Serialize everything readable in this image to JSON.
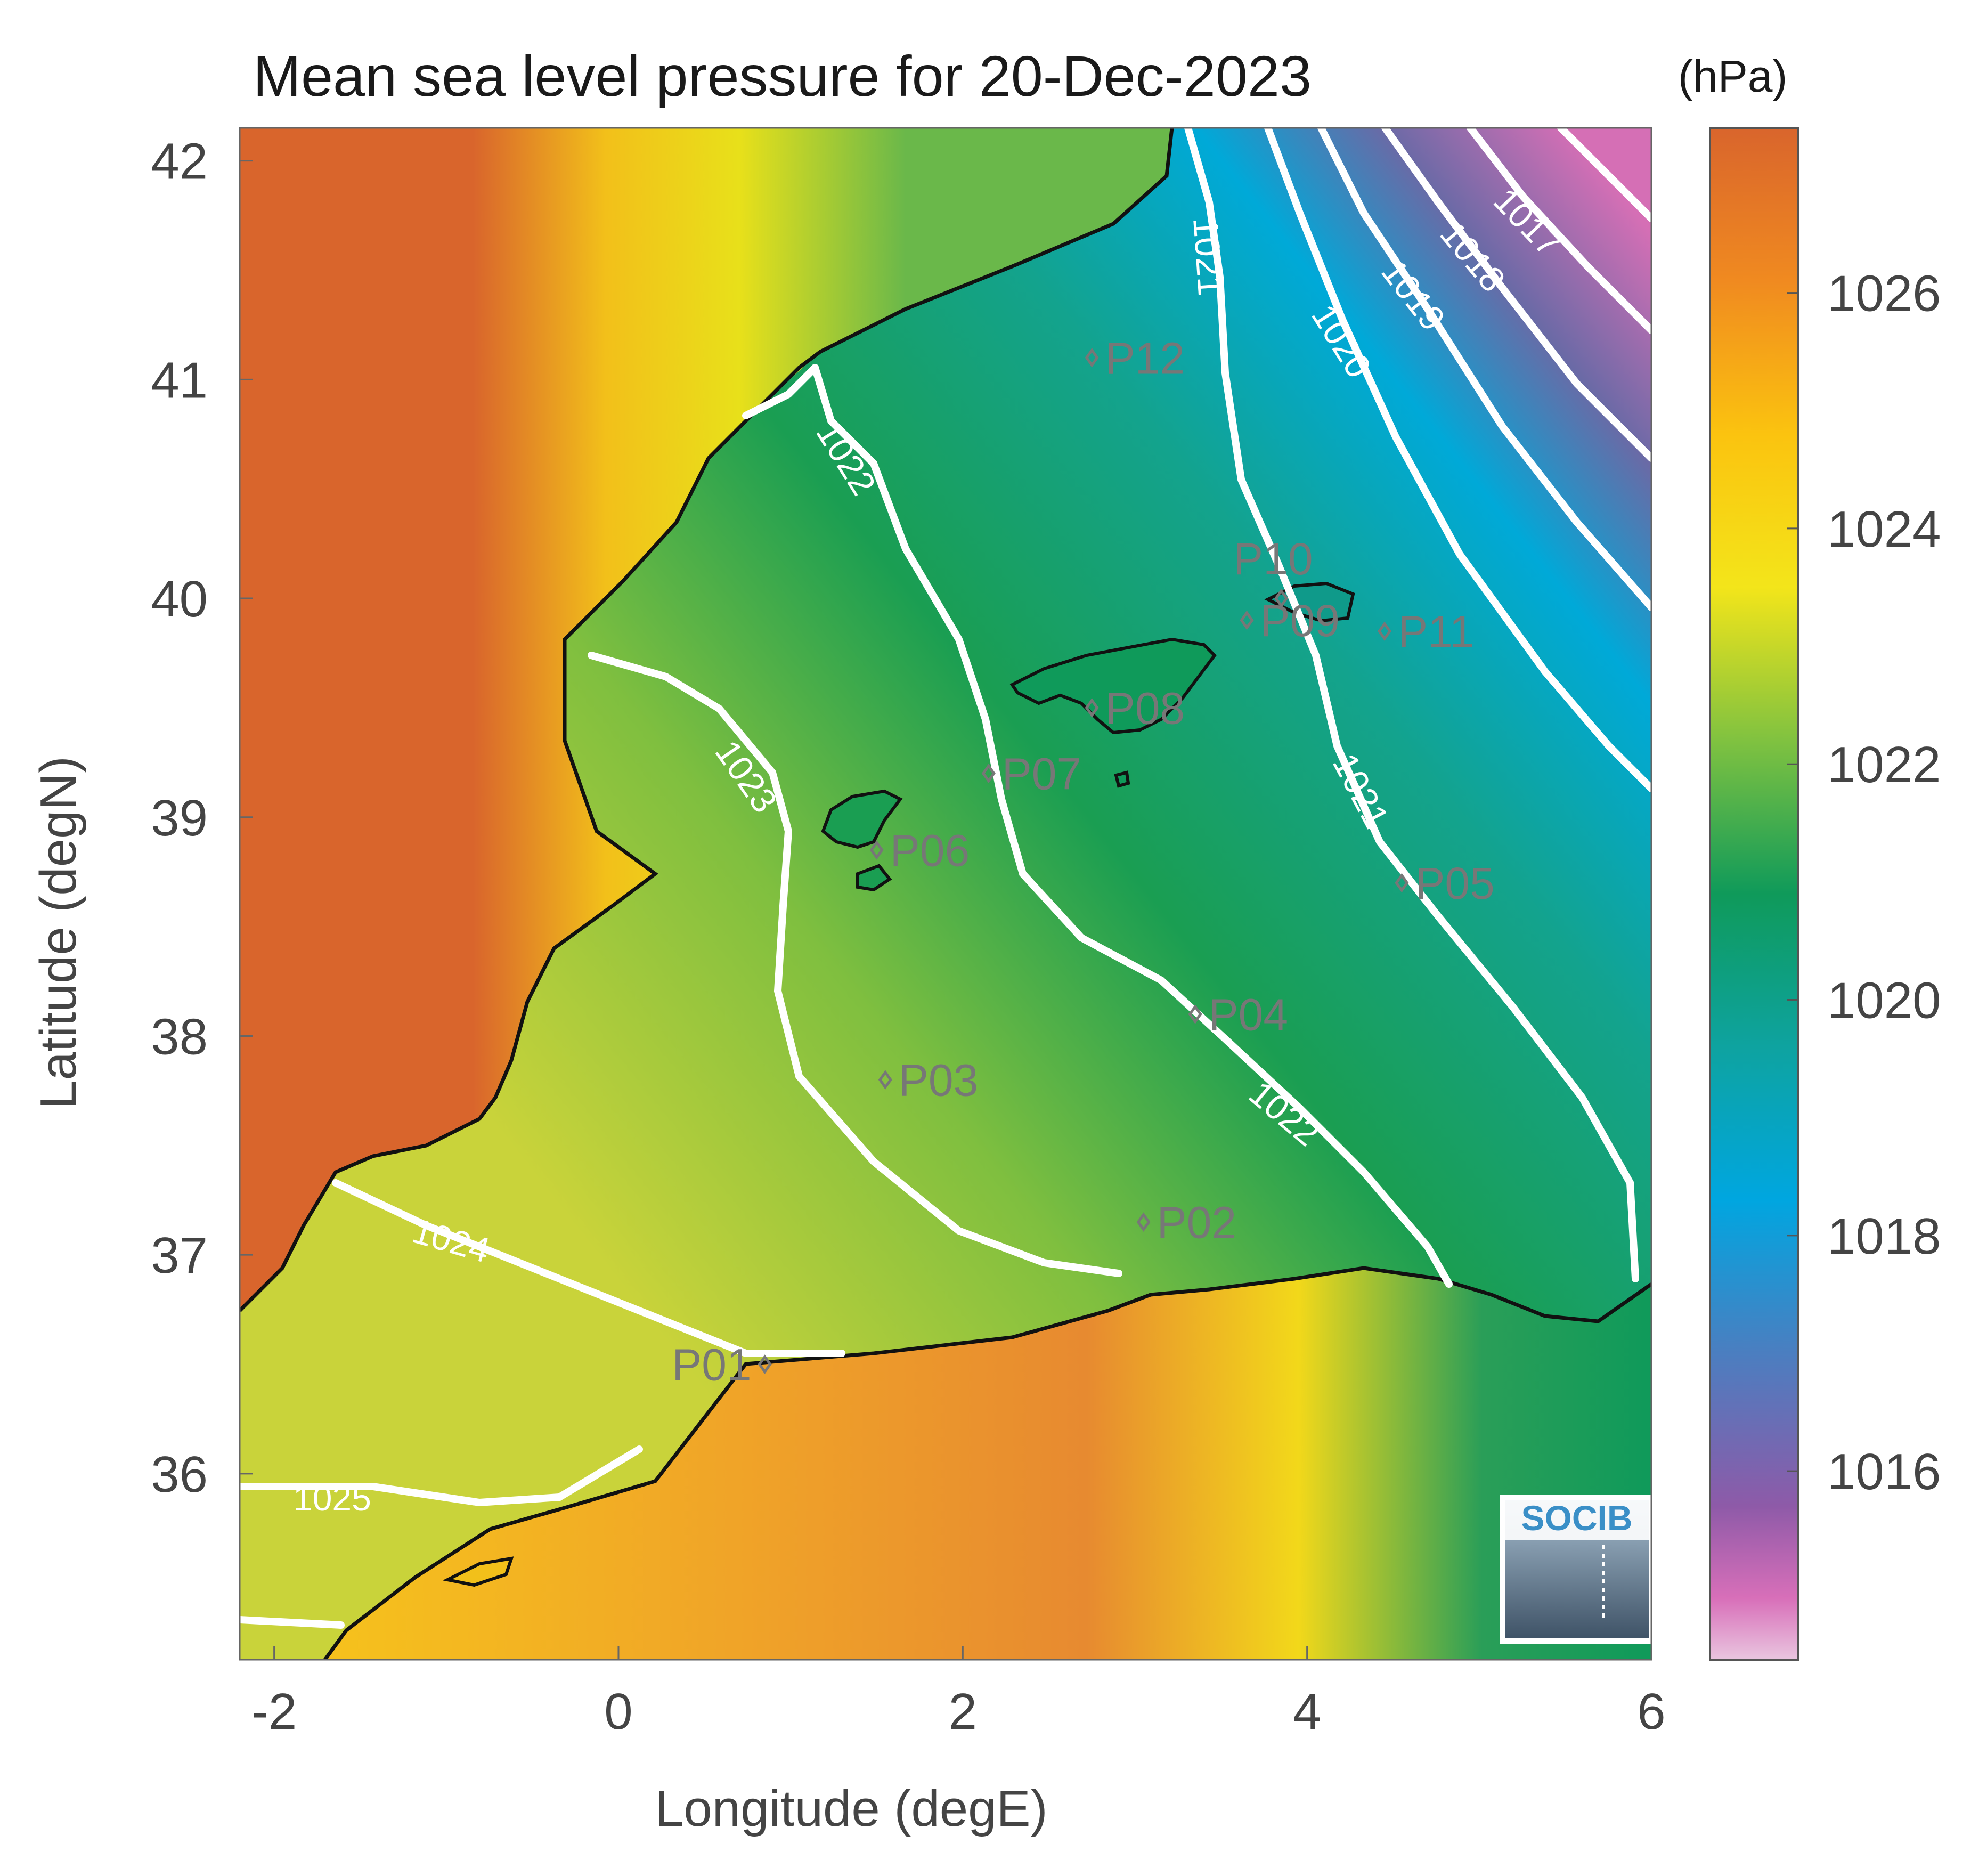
{
  "title": "Mean sea level pressure for 20-Dec-2023",
  "units": "(hPa)",
  "x_axis": {
    "label": "Longitude (degE)",
    "ticks": [
      "-2",
      "0",
      "2",
      "4",
      "6"
    ]
  },
  "y_axis": {
    "label": "Latitude (degN)",
    "ticks": [
      "42",
      "41",
      "40",
      "39",
      "38",
      "37",
      "36"
    ]
  },
  "colorbar": {
    "ticks": [
      "1026",
      "1024",
      "1022",
      "1020",
      "1018",
      "1016"
    ],
    "range": [
      1014.4,
      1027.4
    ]
  },
  "contour_labels": [
    "1025",
    "1024",
    "1023",
    "1022",
    "1022",
    "1021",
    "1021",
    "1020",
    "1019",
    "1018",
    "1017"
  ],
  "stations": [
    {
      "id": "P01",
      "lon": 0.85,
      "lat": 36.5
    },
    {
      "id": "P02",
      "lon": 3.05,
      "lat": 37.15
    },
    {
      "id": "P03",
      "lon": 1.55,
      "lat": 37.8
    },
    {
      "id": "P04",
      "lon": 3.35,
      "lat": 38.1
    },
    {
      "id": "P05",
      "lon": 4.55,
      "lat": 38.7
    },
    {
      "id": "P06",
      "lon": 1.5,
      "lat": 38.85
    },
    {
      "id": "P07",
      "lon": 2.15,
      "lat": 39.2
    },
    {
      "id": "P08",
      "lon": 2.75,
      "lat": 39.5
    },
    {
      "id": "P09",
      "lon": 3.65,
      "lat": 39.9
    },
    {
      "id": "P10",
      "lon": 3.85,
      "lat": 40.0
    },
    {
      "id": "P11",
      "lon": 4.45,
      "lat": 39.85
    },
    {
      "id": "P12",
      "lon": 2.75,
      "lat": 41.1
    }
  ],
  "logo_text": "SOCIB",
  "colors": {
    "land_high": "#d9652c",
    "sea_mid": "#0f9a5a",
    "sea_low": "#00a6d6",
    "min": "#d56fb5",
    "contour": "#ffffff",
    "station": "#777777"
  }
}
